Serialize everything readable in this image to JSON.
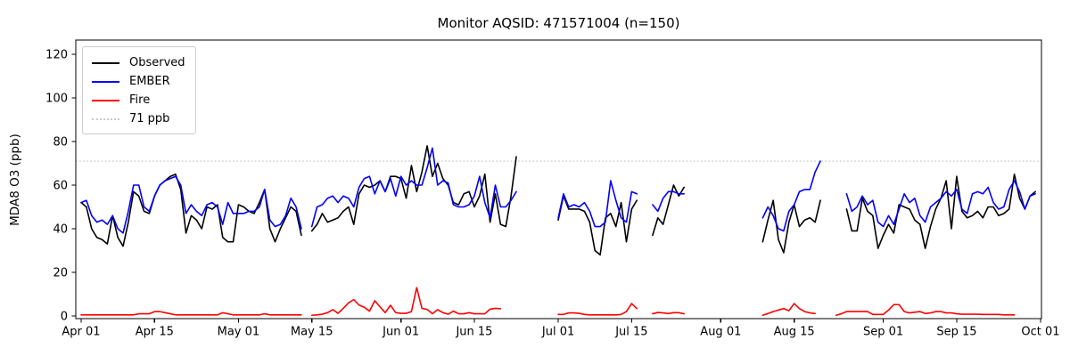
{
  "chart_data": {
    "type": "line",
    "title": "Monitor AQSID: 471571004 (n=150)",
    "ylabel": "MDA8 O3 (ppb)",
    "x_axis_unit": "date",
    "x_range_days": [
      0,
      183
    ],
    "x_ticks": [
      {
        "label": "Apr 01",
        "day": 0
      },
      {
        "label": "Apr 15",
        "day": 14
      },
      {
        "label": "May 01",
        "day": 30
      },
      {
        "label": "May 15",
        "day": 44
      },
      {
        "label": "Jun 01",
        "day": 61
      },
      {
        "label": "Jun 15",
        "day": 75
      },
      {
        "label": "Jul 01",
        "day": 91
      },
      {
        "label": "Jul 15",
        "day": 105
      },
      {
        "label": "Aug 01",
        "day": 122
      },
      {
        "label": "Aug 15",
        "day": 136
      },
      {
        "label": "Sep 01",
        "day": 153
      },
      {
        "label": "Sep 15",
        "day": 167
      },
      {
        "label": "Oct 01",
        "day": 183
      }
    ],
    "y_ticks": [
      0,
      20,
      40,
      60,
      80,
      100,
      120
    ],
    "ylim": [
      -1.2,
      126.5
    ],
    "grid": false,
    "legend_position": "upper left",
    "reference_line": {
      "label": "71 ppb",
      "value": 71,
      "style": "dotted",
      "color": "#c9c9c9"
    },
    "series": [
      {
        "name": "Observed",
        "color": "#000000",
        "values": [
          52,
          50,
          40,
          36,
          35,
          33,
          46,
          36,
          32,
          43,
          57,
          55,
          48,
          47,
          55,
          60,
          62,
          64,
          65,
          58,
          38,
          46,
          44,
          40,
          50,
          49,
          51,
          36,
          34,
          34,
          51,
          50,
          48,
          47,
          52,
          58,
          40,
          34,
          40,
          45,
          50,
          48,
          37,
          null,
          39,
          42,
          47,
          43,
          44,
          45,
          48,
          50,
          42,
          56,
          60,
          59,
          60,
          62,
          57,
          64,
          64,
          63,
          54,
          69,
          57,
          66,
          78,
          64,
          70,
          63,
          60,
          52,
          51,
          56,
          57,
          50,
          55,
          65,
          43,
          56,
          42,
          41,
          55,
          73,
          null,
          null,
          null,
          null,
          null,
          null,
          null,
          44,
          55,
          49,
          49,
          49,
          48,
          43,
          30,
          28,
          45,
          47,
          41,
          52,
          34,
          49,
          53,
          null,
          null,
          37,
          45,
          42,
          51,
          60,
          55,
          59,
          null,
          null,
          null,
          null,
          null,
          null,
          null,
          null,
          null,
          null,
          null,
          null,
          null,
          null,
          34,
          44,
          53,
          35,
          29,
          43,
          51,
          41,
          44,
          45,
          43,
          53,
          null,
          null,
          null,
          null,
          49,
          39,
          39,
          54,
          48,
          46,
          31,
          37,
          42,
          38,
          51,
          50,
          49,
          44,
          42,
          31,
          41,
          49,
          54,
          62,
          40,
          64,
          48,
          45,
          46,
          48,
          45,
          50,
          50,
          46,
          47,
          49,
          65,
          54,
          49,
          55,
          57,
          null
        ]
      },
      {
        "name": "EMBER",
        "color": "#0000ff",
        "values": [
          52,
          53,
          46,
          43,
          44,
          42,
          46,
          40,
          38,
          48,
          60,
          60,
          50,
          48,
          55,
          60,
          62,
          63,
          64,
          60,
          47,
          51,
          48,
          46,
          51,
          52,
          50,
          42,
          52,
          47,
          47,
          47,
          48,
          48,
          50,
          58,
          44,
          41,
          42,
          46,
          54,
          50,
          40,
          null,
          41,
          50,
          51,
          54,
          55,
          52,
          55,
          54,
          50,
          59,
          63,
          64,
          56,
          62,
          57,
          63,
          55,
          64,
          60,
          62,
          60,
          60,
          68,
          77,
          60,
          62,
          61,
          51,
          50,
          50,
          51,
          55,
          64,
          52,
          45,
          60,
          50,
          50,
          53,
          57,
          null,
          null,
          null,
          null,
          null,
          null,
          null,
          45,
          56,
          50,
          51,
          50,
          52,
          48,
          41,
          41,
          43,
          62,
          53,
          45,
          43,
          57,
          56,
          null,
          null,
          51,
          48,
          54,
          57,
          57,
          56,
          56,
          null,
          null,
          null,
          null,
          null,
          null,
          null,
          null,
          null,
          null,
          null,
          null,
          null,
          null,
          45,
          50,
          46,
          40,
          39,
          48,
          51,
          57,
          58,
          58,
          66,
          71,
          null,
          null,
          null,
          null,
          56,
          48,
          50,
          55,
          51,
          53,
          43,
          41,
          46,
          42,
          49,
          56,
          52,
          54,
          46,
          43,
          50,
          52,
          54,
          57,
          55,
          58,
          49,
          47,
          56,
          57,
          56,
          59,
          52,
          49,
          50,
          58,
          62,
          57,
          49,
          55,
          56,
          null
        ]
      },
      {
        "name": "Fire",
        "color": "#ff0000",
        "values": [
          0.5,
          0.5,
          0.5,
          0.5,
          0.5,
          0.5,
          0.5,
          0.5,
          0.5,
          0.5,
          0.5,
          1,
          1,
          1,
          2,
          2,
          1.5,
          1,
          0.5,
          0.5,
          0.5,
          0.5,
          0.5,
          0.5,
          0.5,
          0.5,
          0.5,
          1.5,
          1,
          0.5,
          0.5,
          0.5,
          0.5,
          0.5,
          0.5,
          1,
          0.5,
          0.5,
          0.5,
          0.5,
          0.5,
          0.5,
          0.5,
          null,
          0.3,
          0.5,
          0.8,
          1.5,
          2.9,
          1.2,
          3.5,
          6,
          7.5,
          5,
          4,
          2.2,
          7,
          4.2,
          1.5,
          4.9,
          1.5,
          1.2,
          1.2,
          2,
          13,
          3.5,
          3,
          1,
          2.9,
          1.5,
          0.8,
          2.2,
          1,
          1,
          1.5,
          1,
          1,
          1,
          3.1,
          3.5,
          3.3,
          null,
          null,
          null,
          null,
          null,
          null,
          null,
          null,
          null,
          null,
          0.7,
          0.7,
          1.4,
          1.4,
          1.2,
          0.7,
          0.5,
          0.5,
          0.5,
          0.5,
          0.5,
          0.5,
          0.7,
          2,
          5.7,
          3.4,
          null,
          null,
          1,
          1.6,
          1.4,
          1.1,
          1.5,
          1.5,
          1,
          null,
          null,
          null,
          null,
          null,
          null,
          null,
          null,
          null,
          null,
          null,
          null,
          null,
          null,
          0.3,
          1.1,
          2,
          2.7,
          3.4,
          2.4,
          5.7,
          3.4,
          2,
          1.4,
          1.1,
          null,
          null,
          null,
          0.3,
          1,
          2,
          2,
          2,
          2,
          2,
          0.7,
          0.7,
          0.7,
          2.7,
          5.2,
          5.2,
          2,
          1.4,
          1.7,
          2,
          1.1,
          1.4,
          2,
          2,
          1.4,
          1.4,
          1,
          0.8,
          0.8,
          0.8,
          0.8,
          0.7,
          0.7,
          0.7,
          0.7,
          0.5,
          0.5,
          0.5,
          null,
          null,
          null,
          null,
          null
        ]
      }
    ]
  },
  "legend": {
    "items": [
      {
        "label": "Observed"
      },
      {
        "label": "EMBER"
      },
      {
        "label": "Fire"
      },
      {
        "label": "71 ppb"
      }
    ]
  }
}
